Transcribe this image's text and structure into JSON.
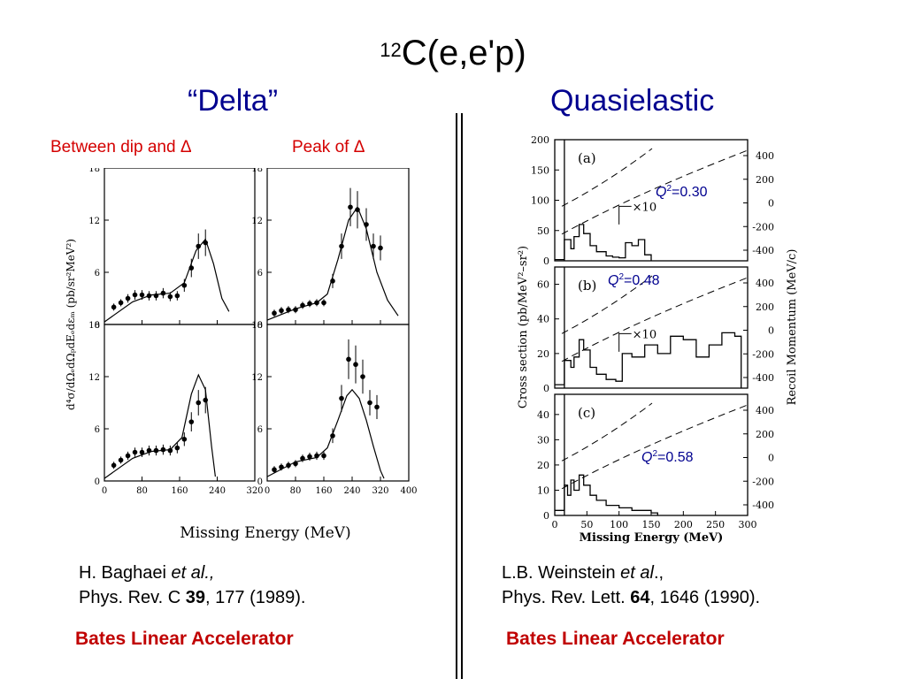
{
  "slide": {
    "title_sup": "12",
    "title_main": "C(e,e'p)",
    "left_heading": "“Delta”",
    "right_heading": "Quasielastic",
    "left_sub1": "Between dip and Δ",
    "left_sub2": "Peak of Δ",
    "ref_left": {
      "author": "H. Baghaei ",
      "etal": "et al.,",
      "journal": "Phys. Rev. C ",
      "vol": "39",
      "rest": ", 177 (1989)."
    },
    "ref_right": {
      "author": "L.B. Weinstein ",
      "etal": "et al",
      "etal_after": ".,",
      "journal": "Phys. Rev. Lett. ",
      "vol": "64",
      "rest": ", 1646 (1990)."
    },
    "bates_left": "Bates Linear Accelerator",
    "bates_right": "Bates Linear Accelerator"
  },
  "colors": {
    "title": "#000000",
    "heading": "#00008f",
    "red": "#c00000",
    "q2": "#00008f"
  },
  "chart_data": [
    {
      "type": "scatter",
      "panel": "left-top-left",
      "xlabel": "Missing Energy (MeV)",
      "ylabel": "d⁴σ/dΩₑdΩₚdEₑdεₘ (pb/sr²MeV²)",
      "xlim": [
        0,
        320
      ],
      "ylim": [
        0,
        18
      ],
      "xticks": [
        0,
        80,
        160,
        240,
        320
      ],
      "yticks": [
        0,
        6,
        12,
        18
      ],
      "points": [
        [
          20,
          2.0
        ],
        [
          35,
          2.5
        ],
        [
          50,
          3.0
        ],
        [
          65,
          3.4
        ],
        [
          80,
          3.4
        ],
        [
          95,
          3.3
        ],
        [
          110,
          3.3
        ],
        [
          125,
          3.6
        ],
        [
          140,
          3.2
        ],
        [
          155,
          3.3
        ],
        [
          170,
          4.5
        ],
        [
          185,
          6.5
        ],
        [
          200,
          9.0
        ],
        [
          215,
          9.4
        ]
      ],
      "curve": [
        [
          0,
          0.3
        ],
        [
          60,
          2.6
        ],
        [
          100,
          3.4
        ],
        [
          140,
          3.6
        ],
        [
          170,
          4.8
        ],
        [
          195,
          8.5
        ],
        [
          215,
          9.8
        ],
        [
          232,
          7.0
        ],
        [
          250,
          3.0
        ],
        [
          265,
          1.5
        ]
      ]
    },
    {
      "type": "scatter",
      "panel": "left-top-right",
      "xlim": [
        0,
        400
      ],
      "ylim": [
        0,
        18
      ],
      "xticks": [
        0,
        80,
        160,
        240,
        320,
        400
      ],
      "yticks": [
        0,
        6,
        12,
        18
      ],
      "points": [
        [
          20,
          1.3
        ],
        [
          40,
          1.6
        ],
        [
          60,
          1.7
        ],
        [
          80,
          1.7
        ],
        [
          100,
          2.2
        ],
        [
          120,
          2.4
        ],
        [
          140,
          2.5
        ],
        [
          160,
          2.5
        ],
        [
          185,
          5.0
        ],
        [
          210,
          9.0
        ],
        [
          235,
          13.5
        ],
        [
          255,
          13.2
        ],
        [
          280,
          11.5
        ],
        [
          300,
          9.0
        ],
        [
          320,
          8.8
        ]
      ],
      "curve": [
        [
          0,
          0.5
        ],
        [
          80,
          1.8
        ],
        [
          140,
          2.5
        ],
        [
          170,
          3.5
        ],
        [
          200,
          7.5
        ],
        [
          230,
          12.0
        ],
        [
          255,
          13.5
        ],
        [
          280,
          11.0
        ],
        [
          310,
          6.0
        ],
        [
          340,
          2.8
        ],
        [
          370,
          1.0
        ]
      ]
    },
    {
      "type": "scatter",
      "panel": "left-bottom-left",
      "xlabel": "Missing Energy (MeV)",
      "xlim": [
        0,
        320
      ],
      "ylim": [
        0,
        18
      ],
      "xticks": [
        0,
        80,
        160,
        240,
        320
      ],
      "yticks": [
        0,
        6,
        12,
        18
      ],
      "points": [
        [
          20,
          1.8
        ],
        [
          35,
          2.4
        ],
        [
          50,
          2.9
        ],
        [
          65,
          3.3
        ],
        [
          80,
          3.3
        ],
        [
          95,
          3.5
        ],
        [
          110,
          3.5
        ],
        [
          125,
          3.6
        ],
        [
          140,
          3.5
        ],
        [
          155,
          3.8
        ],
        [
          170,
          4.8
        ],
        [
          185,
          6.8
        ],
        [
          200,
          9.0
        ],
        [
          215,
          9.3
        ]
      ],
      "curve": [
        [
          0,
          0.3
        ],
        [
          60,
          2.6
        ],
        [
          100,
          3.4
        ],
        [
          140,
          3.6
        ],
        [
          165,
          5.0
        ],
        [
          185,
          10.0
        ],
        [
          200,
          12.2
        ],
        [
          215,
          10.5
        ],
        [
          228,
          4.0
        ],
        [
          236,
          0.5
        ]
      ]
    },
    {
      "type": "scatter",
      "panel": "left-bottom-right",
      "xlabel": "Missing Energy (MeV)",
      "xlim": [
        0,
        400
      ],
      "ylim": [
        0,
        18
      ],
      "xticks": [
        0,
        80,
        160,
        240,
        320,
        400
      ],
      "yticks": [
        0,
        6,
        12,
        18
      ],
      "points": [
        [
          20,
          1.3
        ],
        [
          40,
          1.6
        ],
        [
          60,
          1.8
        ],
        [
          80,
          2.0
        ],
        [
          100,
          2.6
        ],
        [
          120,
          2.8
        ],
        [
          140,
          2.9
        ],
        [
          160,
          2.9
        ],
        [
          185,
          5.2
        ],
        [
          210,
          9.5
        ],
        [
          230,
          14.0
        ],
        [
          250,
          13.4
        ],
        [
          270,
          12.0
        ],
        [
          290,
          9.0
        ],
        [
          310,
          8.5
        ]
      ],
      "curve": [
        [
          0,
          0.5
        ],
        [
          80,
          2.2
        ],
        [
          140,
          2.7
        ],
        [
          170,
          3.8
        ],
        [
          200,
          7.0
        ],
        [
          225,
          9.8
        ],
        [
          240,
          10.5
        ],
        [
          260,
          9.5
        ],
        [
          280,
          7.0
        ],
        [
          300,
          4.0
        ],
        [
          320,
          1.2
        ],
        [
          330,
          0.3
        ]
      ]
    },
    {
      "type": "line",
      "panel": "(a)",
      "xlabel": "Missing Energy (MeV)",
      "ylabel": "Cross section (pb/MeV²–sr²)",
      "ylabel_right": "Recoil Momentum (MeV/c)",
      "xlim": [
        0,
        300
      ],
      "ylim": [
        0,
        200
      ],
      "yticks": [
        0,
        50,
        100,
        150,
        200
      ],
      "yticks_right": [
        400,
        200,
        0,
        -200,
        -400
      ],
      "label": "(a)",
      "scale_note": "×10",
      "q2_prefix": "Q",
      "q2_exp": "2",
      "q2_value": "=0.30",
      "histogram": [
        [
          0,
          2
        ],
        [
          10,
          2
        ],
        [
          15,
          35
        ],
        [
          25,
          20
        ],
        [
          30,
          40
        ],
        [
          38,
          60
        ],
        [
          45,
          45
        ],
        [
          55,
          25
        ],
        [
          65,
          15
        ],
        [
          80,
          8
        ],
        [
          90,
          6
        ],
        [
          100,
          5
        ],
        [
          110,
          30
        ],
        [
          120,
          25
        ],
        [
          130,
          35
        ],
        [
          140,
          10
        ],
        [
          150,
          0
        ]
      ]
    },
    {
      "type": "line",
      "panel": "(b)",
      "xlim": [
        0,
        300
      ],
      "ylim": [
        0,
        70
      ],
      "yticks": [
        0,
        20,
        40,
        60
      ],
      "yticks_right": [
        400,
        200,
        0,
        -200,
        -400
      ],
      "label": "(b)",
      "scale_note": "×10",
      "q2_prefix": "Q",
      "q2_exp": "2",
      "q2_value": "=0.48",
      "histogram": [
        [
          0,
          2
        ],
        [
          10,
          2
        ],
        [
          15,
          16
        ],
        [
          25,
          12
        ],
        [
          30,
          18
        ],
        [
          38,
          28
        ],
        [
          45,
          22
        ],
        [
          55,
          12
        ],
        [
          65,
          8
        ],
        [
          80,
          5
        ],
        [
          95,
          4
        ],
        [
          105,
          20
        ],
        [
          120,
          18
        ],
        [
          140,
          25
        ],
        [
          160,
          20
        ],
        [
          180,
          30
        ],
        [
          200,
          28
        ],
        [
          220,
          18
        ],
        [
          240,
          25
        ],
        [
          260,
          32
        ],
        [
          280,
          30
        ],
        [
          290,
          0
        ]
      ]
    },
    {
      "type": "line",
      "panel": "(c)",
      "xlabel": "Missing Energy (MeV)",
      "xlim": [
        0,
        300
      ],
      "xticks": [
        0,
        50,
        100,
        150,
        200,
        250,
        300
      ],
      "ylim": [
        0,
        48
      ],
      "yticks": [
        0,
        10,
        20,
        30,
        40
      ],
      "yticks_right": [
        400,
        200,
        0,
        -200,
        -400
      ],
      "label": "(c)",
      "q2_prefix": "Q",
      "q2_exp": "2",
      "q2_value": "=0.58",
      "histogram": [
        [
          0,
          2
        ],
        [
          10,
          2
        ],
        [
          15,
          12
        ],
        [
          20,
          8
        ],
        [
          25,
          14
        ],
        [
          30,
          10
        ],
        [
          38,
          16
        ],
        [
          45,
          12
        ],
        [
          55,
          8
        ],
        [
          65,
          6
        ],
        [
          80,
          4
        ],
        [
          100,
          3
        ],
        [
          120,
          2
        ],
        [
          150,
          1
        ],
        [
          160,
          0
        ]
      ]
    }
  ]
}
